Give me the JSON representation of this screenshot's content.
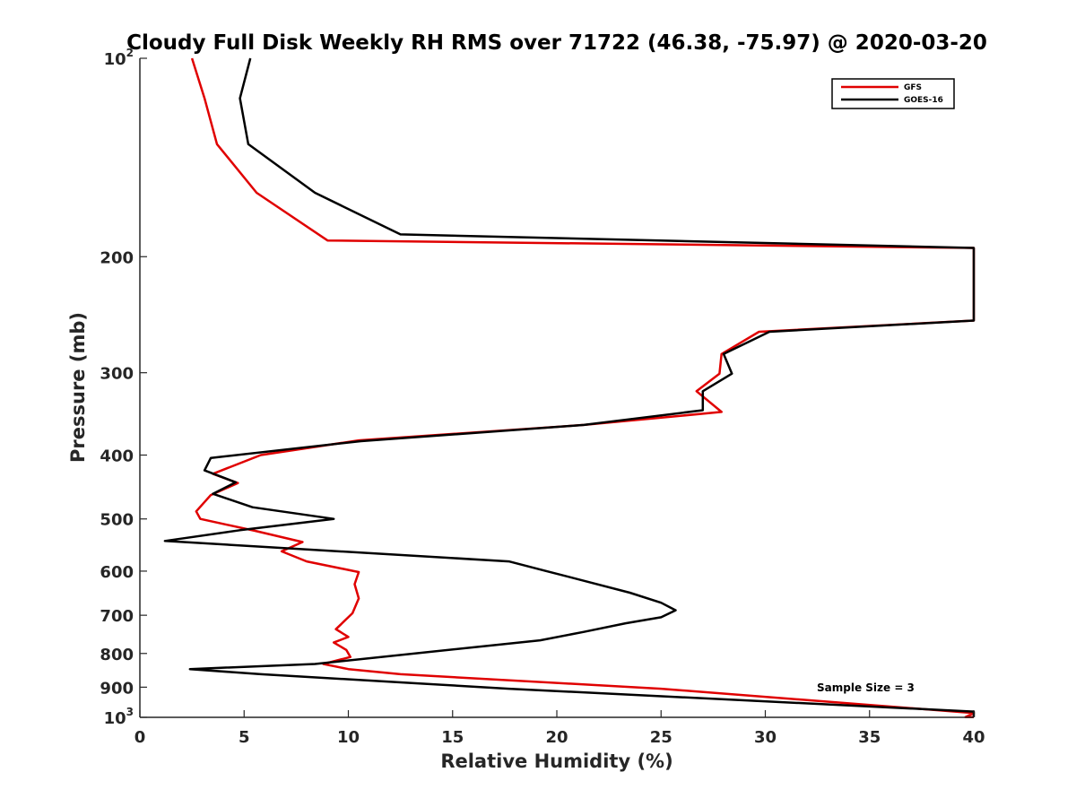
{
  "chart_data": {
    "type": "line",
    "title": "Cloudy Full Disk Weekly RH RMS over 71722 (46.38, -75.97) @ 2020-03-20",
    "xlabel": "Relative Humidity (%)",
    "ylabel": "Pressure (mb)",
    "xlim": [
      0,
      40
    ],
    "ylim": [
      100,
      1000
    ],
    "y_scale": "log",
    "y_reversed": true,
    "x_ticks": [
      0,
      5,
      10,
      15,
      20,
      25,
      30,
      35,
      40
    ],
    "y_ticks": [
      {
        "value": 100,
        "label": "10",
        "sup": "2"
      },
      {
        "value": 200,
        "label": "200"
      },
      {
        "value": 300,
        "label": "300"
      },
      {
        "value": 400,
        "label": "400"
      },
      {
        "value": 500,
        "label": "500"
      },
      {
        "value": 600,
        "label": "600"
      },
      {
        "value": 700,
        "label": "700"
      },
      {
        "value": 800,
        "label": "800"
      },
      {
        "value": 900,
        "label": "900"
      },
      {
        "value": 1000,
        "label": "10",
        "sup": "3"
      }
    ],
    "grid": false,
    "legend_position": "top-right",
    "annotation": "Sample Size = 3",
    "series": [
      {
        "name": "GFS",
        "color": "#e00000",
        "points": [
          [
            2.5,
            100
          ],
          [
            3.1,
            115
          ],
          [
            3.7,
            135
          ],
          [
            5.6,
            160
          ],
          [
            9.0,
            189
          ],
          [
            40,
            194
          ],
          [
            40,
            250
          ],
          [
            29.7,
            260
          ],
          [
            27.9,
            281
          ],
          [
            27.8,
            301
          ],
          [
            26.7,
            320
          ],
          [
            27.9,
            344
          ],
          [
            21.3,
            360
          ],
          [
            10.5,
            380
          ],
          [
            5.8,
            400
          ],
          [
            3.5,
            427
          ],
          [
            4.7,
            441
          ],
          [
            3.4,
            460
          ],
          [
            2.7,
            487
          ],
          [
            2.9,
            500
          ],
          [
            5.5,
            521
          ],
          [
            7.8,
            542
          ],
          [
            6.8,
            560
          ],
          [
            8.0,
            580
          ],
          [
            10.5,
            602
          ],
          [
            10.3,
            628
          ],
          [
            10.5,
            660
          ],
          [
            10.2,
            695
          ],
          [
            9.4,
            735
          ],
          [
            10.0,
            755
          ],
          [
            9.3,
            770
          ],
          [
            9.9,
            790
          ],
          [
            10.1,
            810
          ],
          [
            8.8,
            830
          ],
          [
            10.0,
            845
          ],
          [
            12.5,
            860
          ],
          [
            25.0,
            905
          ],
          [
            40,
            985
          ],
          [
            39.6,
            999
          ],
          [
            40,
            999
          ]
        ]
      },
      {
        "name": "GOES-16",
        "color": "#000000",
        "points": [
          [
            5.3,
            100
          ],
          [
            4.8,
            115
          ],
          [
            5.2,
            135
          ],
          [
            8.4,
            160
          ],
          [
            12.5,
            185
          ],
          [
            40,
            194
          ],
          [
            40,
            250
          ],
          [
            30.2,
            260
          ],
          [
            28.0,
            281
          ],
          [
            28.4,
            301
          ],
          [
            27.0,
            320
          ],
          [
            27.0,
            342
          ],
          [
            21.3,
            360
          ],
          [
            10.6,
            381
          ],
          [
            3.4,
            404
          ],
          [
            3.1,
            422
          ],
          [
            4.6,
            440
          ],
          [
            3.5,
            458
          ],
          [
            5.4,
            480
          ],
          [
            9.3,
            500
          ],
          [
            4.8,
            520
          ],
          [
            1.2,
            540
          ],
          [
            17.7,
            580
          ],
          [
            19.5,
            600
          ],
          [
            21.5,
            623
          ],
          [
            23.5,
            647
          ],
          [
            25.0,
            670
          ],
          [
            25.7,
            688
          ],
          [
            25.0,
            705
          ],
          [
            23.3,
            720
          ],
          [
            21.3,
            742
          ],
          [
            19.2,
            764
          ],
          [
            8.4,
            830
          ],
          [
            2.4,
            845
          ],
          [
            5.8,
            860
          ],
          [
            17.7,
            905
          ],
          [
            40,
            980
          ],
          [
            40,
            999
          ]
        ]
      }
    ]
  }
}
